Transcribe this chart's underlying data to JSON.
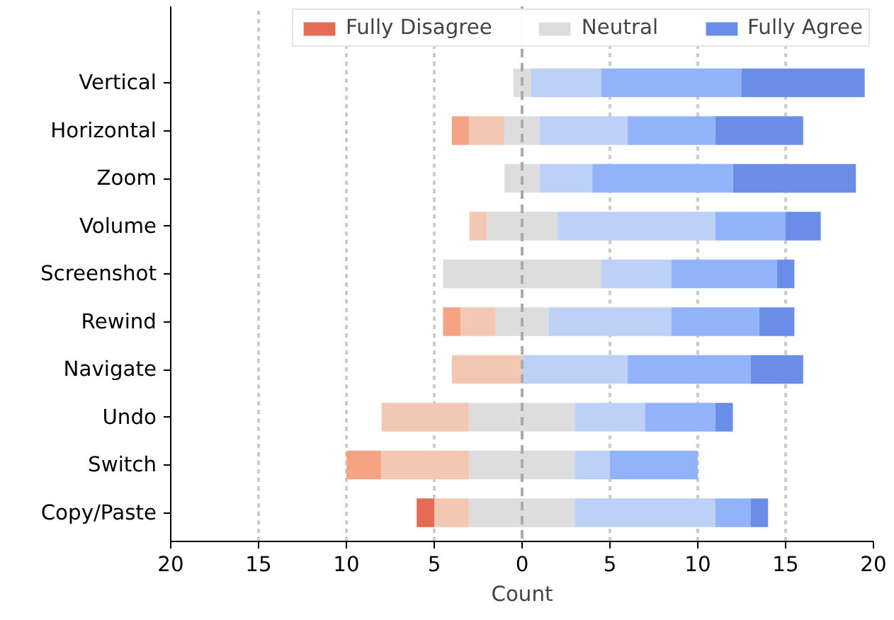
{
  "chart_data": {
    "type": "bar",
    "orientation": "horizontal",
    "xlabel": "Count",
    "categories": [
      "Vertical",
      "Horizontal",
      "Zoom",
      "Volume",
      "Screenshot",
      "Rewind",
      "Navigate",
      "Undo",
      "Switch",
      "Copy/Paste"
    ],
    "series": [
      {
        "name": "Fully Disagree",
        "color": "#e56b55",
        "values": [
          null,
          null,
          null,
          null,
          null,
          null,
          null,
          null,
          null,
          1
        ],
        "base": [
          null,
          null,
          null,
          null,
          null,
          null,
          null,
          null,
          null,
          -6
        ]
      },
      {
        "color": "#f4a385",
        "values": [
          null,
          1,
          null,
          null,
          null,
          1,
          null,
          null,
          2,
          null
        ],
        "base": [
          null,
          -4,
          null,
          null,
          null,
          -4.5,
          null,
          null,
          -10,
          null
        ]
      },
      {
        "color": "#f3c8b3",
        "values": [
          null,
          2,
          null,
          1,
          null,
          2,
          4,
          5,
          5,
          2
        ],
        "base": [
          null,
          -3,
          null,
          -3,
          null,
          -3.5,
          -4,
          -8,
          -8,
          -5
        ]
      },
      {
        "name": "Neutral",
        "color": "#dcdddc",
        "values": [
          1,
          2,
          2,
          4,
          9,
          3,
          null,
          6,
          6,
          6
        ],
        "base": [
          -0.5,
          -1,
          -1,
          -2,
          -4.5,
          -1.5,
          null,
          -3,
          -3,
          -3
        ]
      },
      {
        "color": "#bdd1f6",
        "values": [
          4,
          5,
          3,
          9,
          4,
          7,
          6,
          4,
          2,
          8
        ],
        "base": [
          0.5,
          1,
          1,
          2,
          4.5,
          1.5,
          0,
          3,
          3,
          3
        ]
      },
      {
        "color": "#92b3fa",
        "values": [
          8,
          5,
          8,
          4,
          6,
          5,
          7,
          4,
          5,
          2
        ],
        "base": [
          4.5,
          6,
          4,
          11,
          8.5,
          8.5,
          6,
          7,
          5,
          11
        ]
      },
      {
        "name": "Fully Agree",
        "color": "#6a8ee8",
        "values": [
          7,
          5,
          7,
          2,
          1,
          2,
          3,
          1,
          null,
          1
        ],
        "base": [
          12.5,
          11,
          12,
          15,
          14.5,
          13.5,
          13,
          11,
          null,
          13
        ]
      }
    ],
    "xlim": [
      -20,
      20
    ],
    "xticks": [
      {
        "value": -20,
        "label": "20"
      },
      {
        "value": -15,
        "label": "15"
      },
      {
        "value": -10,
        "label": "10"
      },
      {
        "value": -5,
        "label": "5"
      },
      0,
      5,
      10,
      15,
      20
    ],
    "grid": "x",
    "legend": "top",
    "ref_lines": [
      {
        "axis": "x",
        "value": 0,
        "color": "#aaaaaa",
        "line_style": "dashed"
      }
    ]
  }
}
